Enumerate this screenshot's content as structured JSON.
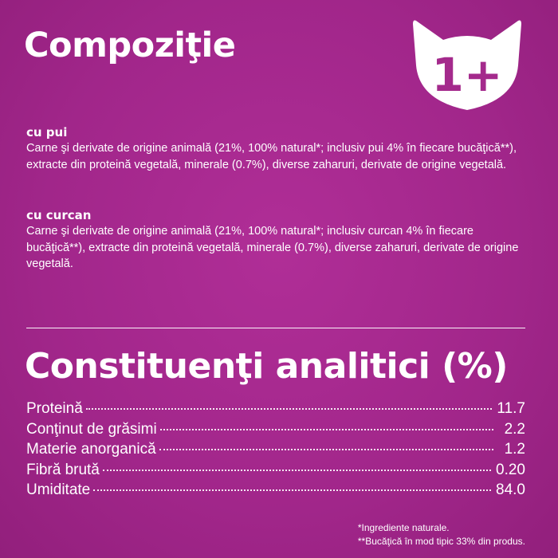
{
  "composition": {
    "title": "Compoziţie",
    "badge_text": "1+",
    "variants": [
      {
        "name": "cu pui",
        "text": "Carne şi derivate de origine animală (21%, 100% natural*; inclusiv pui 4% în fiecare bucăţică**), extracte din proteină vegetală, minerale (0.7%), diverse zaharuri, derivate de origine vegetală."
      },
      {
        "name": "cu curcan",
        "text": "Carne şi derivate de origine animală (21%, 100% natural*; inclusiv curcan 4% în fiecare bucăţică**), extracte din proteină vegetală, minerale (0.7%), diverse zaharuri, derivate de origine vegetală."
      }
    ]
  },
  "analytic": {
    "title": "Constituenţi analitici (%)",
    "rows": [
      {
        "label": "Proteină",
        "value": "11.7"
      },
      {
        "label": "Conţinut de grăsimi",
        "value": "2.2"
      },
      {
        "label": "Materie anorganică",
        "value": "1.2"
      },
      {
        "label": "Fibră brută",
        "value": "0.20"
      },
      {
        "label": "Umiditate",
        "value": "84.0"
      }
    ]
  },
  "footnotes": {
    "note1": "*Ingrediente naturale.",
    "note2": "**Bucăţică în mod tipic 33% din produs."
  },
  "colors": {
    "background": "#a42a8c",
    "text": "#ffffff",
    "badge_fill": "#ffffff",
    "badge_text": "#a42a8c"
  },
  "icons": {
    "badge": "cat-head-icon"
  }
}
